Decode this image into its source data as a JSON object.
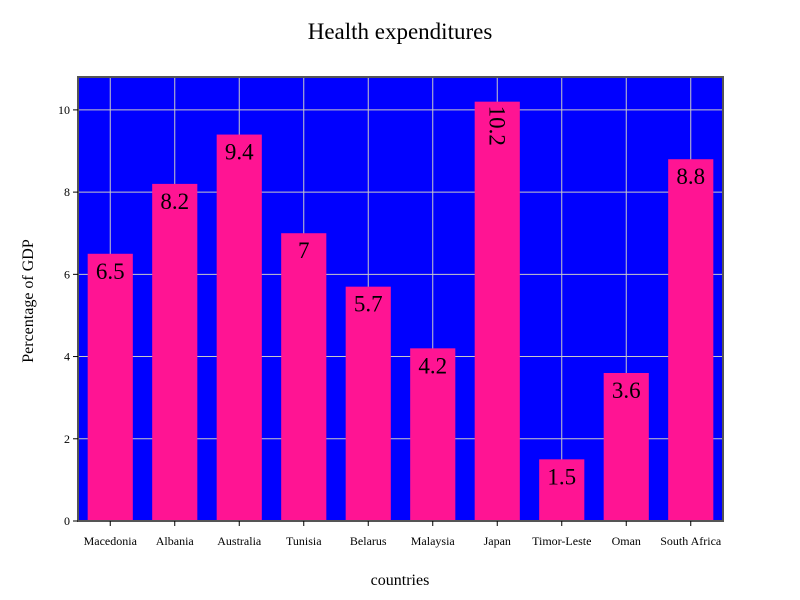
{
  "chart_data": {
    "type": "bar",
    "title": "Health expenditures",
    "xlabel": "countries",
    "ylabel": "Percentage of GDP",
    "categories": [
      "Macedonia",
      "Albania",
      "Australia",
      "Tunisia",
      "Belarus",
      "Malaysia",
      "Japan",
      "Timor-Leste",
      "Oman",
      "South Africa"
    ],
    "values": [
      6.5,
      8.2,
      9.4,
      7,
      5.7,
      4.2,
      10.2,
      1.5,
      3.6,
      8.8
    ],
    "data_labels": [
      "6.5",
      "8.2",
      "9.4",
      "7",
      "5.7",
      "4.2",
      "10.2",
      "1.5",
      "3.6",
      "8.8"
    ],
    "yticks": [
      0,
      2,
      4,
      6,
      8,
      10
    ],
    "ylim": [
      0,
      10.8
    ],
    "grid": true,
    "colors": {
      "plot_background": "#0000ff",
      "bar": "#ff1493",
      "grid": "#c8c8c8",
      "frame": "#555555"
    }
  }
}
